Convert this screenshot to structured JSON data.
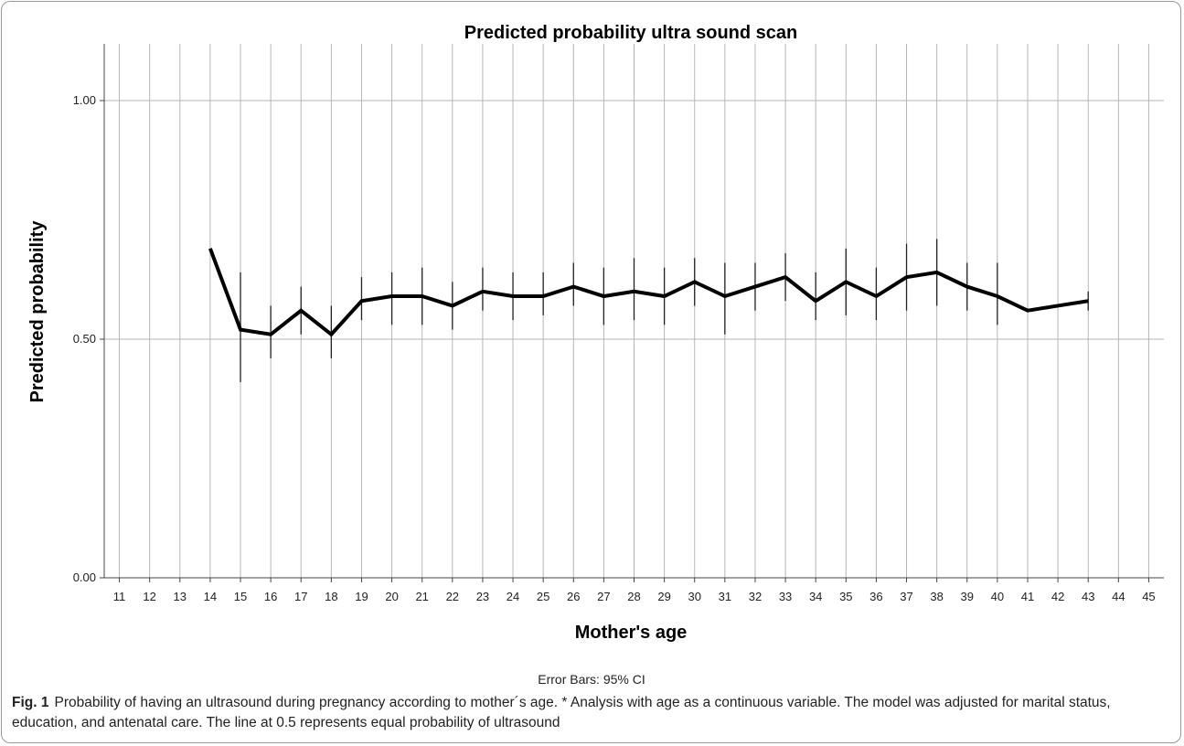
{
  "chart_data": {
    "type": "line",
    "title": "Predicted probability ultra sound scan",
    "xlabel": "Mother's age",
    "ylabel": "Predicted probability",
    "note": "Error Bars: 95% CI",
    "categories": [
      "11",
      "12",
      "13",
      "14",
      "15",
      "16",
      "17",
      "18",
      "19",
      "20",
      "21",
      "22",
      "23",
      "24",
      "25",
      "26",
      "27",
      "28",
      "29",
      "30",
      "31",
      "32",
      "33",
      "34",
      "35",
      "36",
      "37",
      "38",
      "39",
      "40",
      "41",
      "42",
      "43",
      "44",
      "45"
    ],
    "yticks": [
      "0.00",
      "0.50",
      "1.00"
    ],
    "ylim": [
      0,
      1.1
    ],
    "grid": true,
    "reference_line": 0.5,
    "series": [
      {
        "x": [
          14,
          15,
          16,
          17,
          18,
          19,
          20,
          21,
          22,
          23,
          24,
          25,
          26,
          27,
          28,
          29,
          30,
          31,
          32,
          33,
          34,
          35,
          36,
          37,
          38,
          39,
          40,
          41,
          42,
          43
        ],
        "y": [
          0.69,
          0.52,
          0.51,
          0.56,
          0.51,
          0.58,
          0.59,
          0.59,
          0.57,
          0.6,
          0.59,
          0.59,
          0.61,
          0.59,
          0.6,
          0.59,
          0.62,
          0.59,
          0.61,
          0.63,
          0.58,
          0.62,
          0.59,
          0.63,
          0.64,
          0.61,
          0.59,
          0.56,
          0.57,
          0.58
        ],
        "ci_low": [
          null,
          0.41,
          0.46,
          0.51,
          0.46,
          0.54,
          0.53,
          0.53,
          0.52,
          0.56,
          0.54,
          0.55,
          0.57,
          0.53,
          0.54,
          0.53,
          0.57,
          0.51,
          0.56,
          0.58,
          0.54,
          0.55,
          0.54,
          0.56,
          0.57,
          0.56,
          0.53,
          null,
          null,
          0.56
        ],
        "ci_high": [
          null,
          0.64,
          0.57,
          0.61,
          0.57,
          0.63,
          0.64,
          0.65,
          0.62,
          0.65,
          0.64,
          0.64,
          0.66,
          0.65,
          0.67,
          0.65,
          0.67,
          0.66,
          0.66,
          0.68,
          0.64,
          0.69,
          0.65,
          0.7,
          0.71,
          0.66,
          0.66,
          null,
          null,
          0.6
        ]
      }
    ]
  },
  "caption": {
    "figure_label": "Fig. 1",
    "text": "Probability of having an ultrasound during pregnancy according to mother´s age. * Analysis with age as a continuous variable. The model was adjusted for marital status, education, and antenatal care. The line at 0.5 represents equal probability of ultrasound"
  }
}
